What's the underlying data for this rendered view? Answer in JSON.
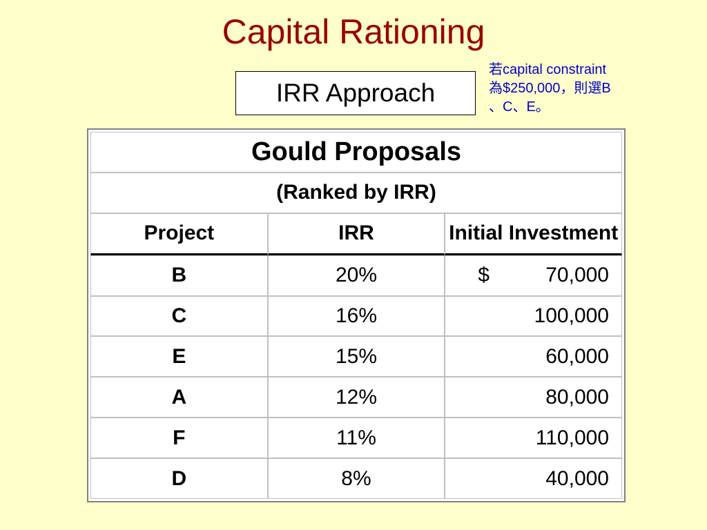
{
  "slide": {
    "title": "Capital Rationing",
    "subtitle": "IRR Approach"
  },
  "note": {
    "line1": "若capital constraint",
    "line2": "為$250,000，則選B",
    "line3": "、C、E。"
  },
  "table": {
    "title": "Gould Proposals",
    "subtitle": "(Ranked by IRR)",
    "headers": {
      "project": "Project",
      "irr": "IRR",
      "investment": "Initial Investment"
    },
    "currency_symbol": "$",
    "rows": [
      {
        "project": "B",
        "irr": "20%",
        "investment": "70,000"
      },
      {
        "project": "C",
        "irr": "16%",
        "investment": "100,000"
      },
      {
        "project": "E",
        "irr": "15%",
        "investment": "60,000"
      },
      {
        "project": "A",
        "irr": "12%",
        "investment": "80,000"
      },
      {
        "project": "F",
        "irr": "11%",
        "investment": "110,000"
      },
      {
        "project": "D",
        "irr": "8%",
        "investment": "40,000"
      }
    ]
  },
  "colors": {
    "background": "#ffffcc",
    "title": "#990000",
    "note": "#0000cc"
  }
}
